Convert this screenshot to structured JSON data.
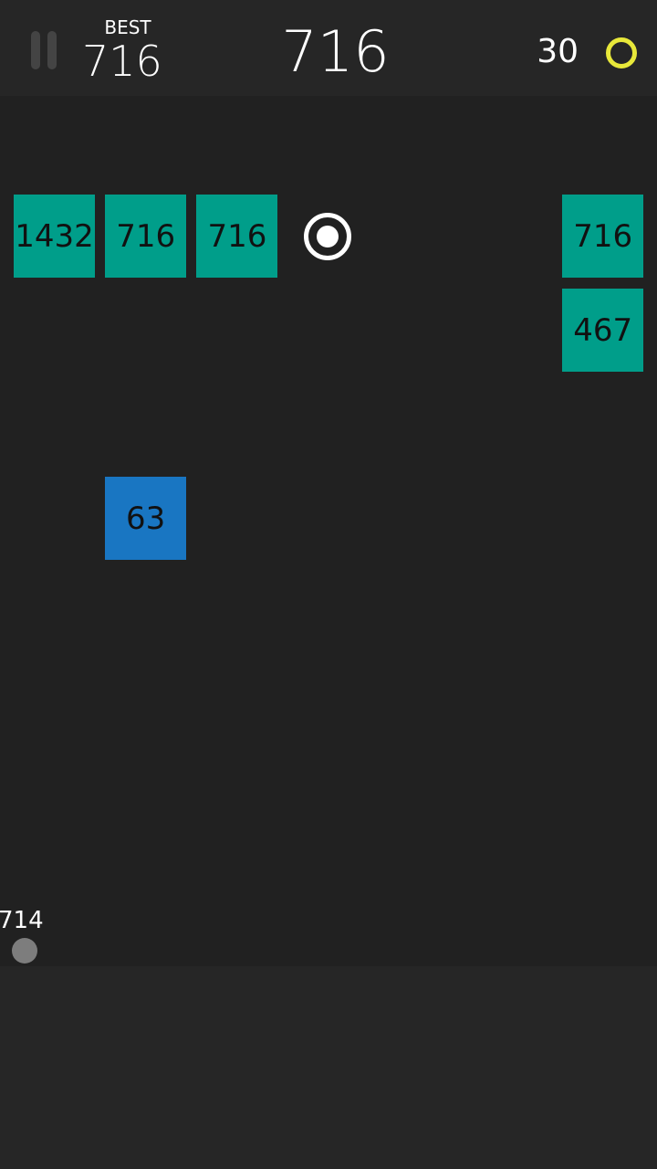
{
  "header": {
    "best_label": "BEST",
    "best_value": "716",
    "score": "716",
    "coins": "30"
  },
  "colors": {
    "block_teal": "#009e8a",
    "block_blue": "#1976c2",
    "coin": "#e8e83a",
    "ball": "#7d7d7d"
  },
  "blocks": [
    {
      "value": "1432",
      "color": "teal",
      "row": 0,
      "col": 0
    },
    {
      "value": "716",
      "color": "teal",
      "row": 0,
      "col": 1
    },
    {
      "value": "716",
      "color": "teal",
      "row": 0,
      "col": 2
    },
    {
      "value": "716",
      "color": "teal",
      "row": 0,
      "col": 6
    },
    {
      "value": "467",
      "color": "teal",
      "row": 1,
      "col": 6
    },
    {
      "value": "63",
      "color": "blue",
      "row": 3,
      "col": 1
    }
  ],
  "pickup": {
    "type": "extra-ball-ring-icon",
    "row": 0,
    "col": 3
  },
  "launcher": {
    "ball_count": "714"
  }
}
